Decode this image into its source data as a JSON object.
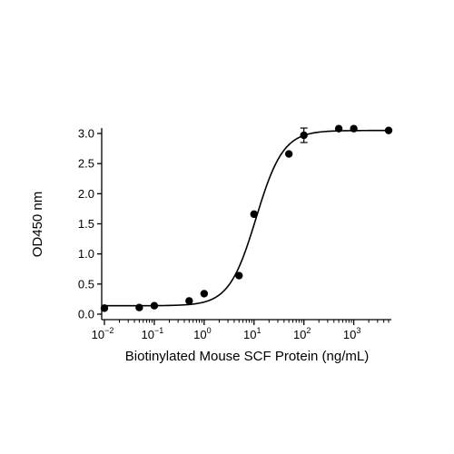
{
  "chart_data": {
    "type": "scatter",
    "title": "",
    "xlabel": "Biotinylated Mouse SCF Protein (ng/mL)",
    "ylabel": "OD450 nm",
    "x_scale": "log",
    "xlim": [
      0.01,
      5000
    ],
    "ylim": [
      0,
      3.0
    ],
    "x_tick_exponents": [
      -2,
      -1,
      0,
      1,
      2,
      3
    ],
    "x_tick_base": "10",
    "y_ticks": [
      "0.0",
      "0.5",
      "1.0",
      "1.5",
      "2.0",
      "2.5",
      "3.0"
    ],
    "grid": false,
    "legend": "none",
    "points": [
      {
        "x": 0.01,
        "y": 0.1
      },
      {
        "x": 0.05,
        "y": 0.11
      },
      {
        "x": 0.1,
        "y": 0.14
      },
      {
        "x": 0.5,
        "y": 0.22
      },
      {
        "x": 1,
        "y": 0.34
      },
      {
        "x": 5,
        "y": 0.64
      },
      {
        "x": 10,
        "y": 1.66
      },
      {
        "x": 50,
        "y": 2.66
      },
      {
        "x": 100,
        "y": 2.97,
        "err": 0.12
      },
      {
        "x": 500,
        "y": 3.08
      },
      {
        "x": 1000,
        "y": 3.08
      },
      {
        "x": 5000,
        "y": 3.05
      }
    ],
    "fit": {
      "model": "4PL",
      "bottom": 0.14,
      "top": 3.05,
      "ec50": 11,
      "hill": 1.6
    },
    "colors": {
      "points": "#000000",
      "fit_line": "#000000",
      "axis": "#000000"
    }
  }
}
